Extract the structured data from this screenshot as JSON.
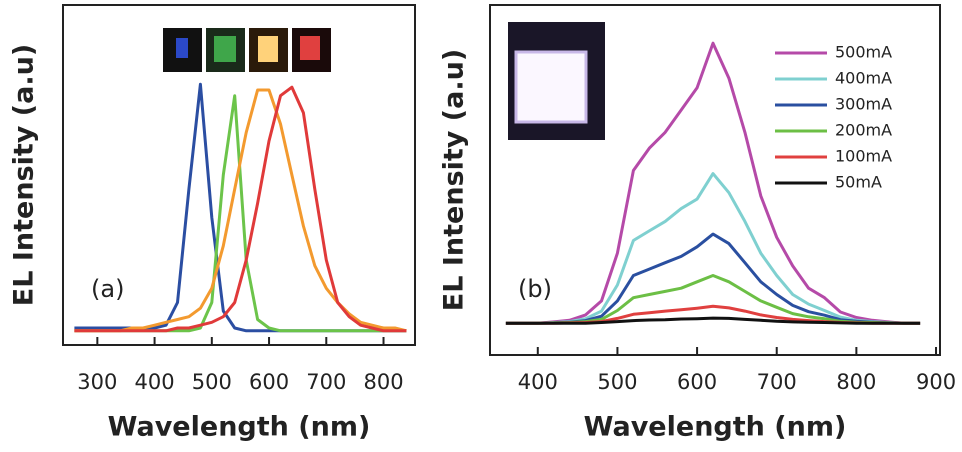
{
  "chart_data": [
    {
      "type": "line",
      "panel_label": "(a)",
      "x_label": "Wavelength (nm)",
      "y_label": "EL Intensity (a.u)",
      "x": [
        260,
        280,
        300,
        320,
        340,
        360,
        380,
        400,
        420,
        440,
        460,
        480,
        500,
        520,
        540,
        560,
        580,
        600,
        620,
        640,
        660,
        680,
        700,
        720,
        740,
        760,
        780,
        800,
        820,
        840
      ],
      "xlim": [
        240,
        855
      ],
      "ylim": [
        0,
        1.2
      ],
      "xticks": [
        300,
        400,
        500,
        600,
        700,
        800
      ],
      "series": [
        {
          "color": "#2b4ea2",
          "values": [
            0.06,
            0.06,
            0.06,
            0.06,
            0.06,
            0.06,
            0.06,
            0.06,
            0.07,
            0.15,
            0.55,
            0.92,
            0.45,
            0.12,
            0.06,
            0.05,
            0.05,
            0.05,
            0.05,
            0.05,
            0.05,
            0.05,
            0.05,
            0.05,
            0.05,
            0.05,
            0.05,
            0.05,
            0.05,
            0.05
          ]
        },
        {
          "color": "#6cc44a",
          "values": [
            0.05,
            0.05,
            0.05,
            0.05,
            0.05,
            0.05,
            0.05,
            0.05,
            0.05,
            0.05,
            0.05,
            0.06,
            0.15,
            0.6,
            0.88,
            0.3,
            0.09,
            0.06,
            0.05,
            0.05,
            0.05,
            0.05,
            0.05,
            0.05,
            0.05,
            0.05,
            0.05,
            0.05,
            0.05,
            0.05
          ]
        },
        {
          "color": "#f39a2f",
          "values": [
            0.05,
            0.05,
            0.05,
            0.05,
            0.05,
            0.06,
            0.06,
            0.07,
            0.08,
            0.09,
            0.1,
            0.13,
            0.2,
            0.35,
            0.55,
            0.75,
            0.9,
            0.9,
            0.78,
            0.6,
            0.42,
            0.28,
            0.2,
            0.15,
            0.11,
            0.08,
            0.07,
            0.06,
            0.06,
            0.05
          ]
        },
        {
          "color": "#e03a3a",
          "values": [
            0.05,
            0.05,
            0.05,
            0.05,
            0.05,
            0.05,
            0.05,
            0.05,
            0.05,
            0.06,
            0.06,
            0.07,
            0.08,
            0.1,
            0.15,
            0.3,
            0.5,
            0.72,
            0.88,
            0.91,
            0.82,
            0.55,
            0.3,
            0.15,
            0.1,
            0.07,
            0.06,
            0.05,
            0.05,
            0.05
          ]
        }
      ]
    },
    {
      "type": "line",
      "panel_label": "(b)",
      "x_label": "Wavelength (nm)",
      "y_label": "EL Intensity (a.u)",
      "legend": "upper right",
      "x": [
        360,
        380,
        400,
        420,
        440,
        460,
        480,
        500,
        520,
        540,
        560,
        580,
        600,
        620,
        640,
        660,
        680,
        700,
        720,
        740,
        760,
        780,
        800,
        820,
        840,
        860,
        880
      ],
      "xlim": [
        340,
        905
      ],
      "ylim": [
        -0.1,
        1.0
      ],
      "xticks": [
        400,
        500,
        600,
        700,
        800,
        900
      ],
      "series": [
        {
          "name": "500mA",
          "color": "#b54aa8",
          "values": [
            0,
            0,
            0,
            0.004,
            0.009,
            0.026,
            0.07,
            0.22,
            0.48,
            0.55,
            0.6,
            0.67,
            0.74,
            0.88,
            0.77,
            0.6,
            0.4,
            0.27,
            0.18,
            0.11,
            0.08,
            0.035,
            0.018,
            0.009,
            0.004,
            0,
            0
          ]
        },
        {
          "name": "400mA",
          "color": "#7fd0d0",
          "values": [
            0,
            0,
            0,
            0.002,
            0.005,
            0.014,
            0.038,
            0.12,
            0.26,
            0.29,
            0.32,
            0.36,
            0.39,
            0.47,
            0.41,
            0.32,
            0.22,
            0.15,
            0.09,
            0.06,
            0.04,
            0.019,
            0.009,
            0.005,
            0.002,
            0,
            0
          ]
        },
        {
          "name": "300mA",
          "color": "#2a4fa0",
          "values": [
            0,
            0,
            0,
            0.001,
            0.003,
            0.008,
            0.022,
            0.07,
            0.15,
            0.17,
            0.19,
            0.21,
            0.24,
            0.28,
            0.25,
            0.19,
            0.13,
            0.09,
            0.056,
            0.036,
            0.025,
            0.011,
            0.006,
            0.003,
            0.001,
            0,
            0
          ]
        },
        {
          "name": "200mA",
          "color": "#6cbf45",
          "values": [
            0,
            0,
            0,
            0.001,
            0.002,
            0.005,
            0.012,
            0.04,
            0.08,
            0.09,
            0.1,
            0.11,
            0.13,
            0.15,
            0.13,
            0.1,
            0.07,
            0.05,
            0.03,
            0.02,
            0.014,
            0.006,
            0.003,
            0.002,
            0.001,
            0,
            0
          ]
        },
        {
          "name": "100mA",
          "color": "#e0403f",
          "values": [
            0,
            0,
            0,
            0,
            0.001,
            0.002,
            0.005,
            0.015,
            0.028,
            0.033,
            0.038,
            0.042,
            0.047,
            0.053,
            0.048,
            0.038,
            0.026,
            0.018,
            0.012,
            0.008,
            0.005,
            0.002,
            0.001,
            0,
            0,
            0,
            0
          ]
        },
        {
          "name": "50mA",
          "color": "#111111",
          "values": [
            0,
            0,
            0,
            0,
            0,
            0,
            0.002,
            0.005,
            0.008,
            0.01,
            0.011,
            0.013,
            0.014,
            0.016,
            0.015,
            0.012,
            0.009,
            0.006,
            0.004,
            0.003,
            0.002,
            0.001,
            0,
            0,
            0,
            0,
            0
          ]
        }
      ]
    }
  ]
}
